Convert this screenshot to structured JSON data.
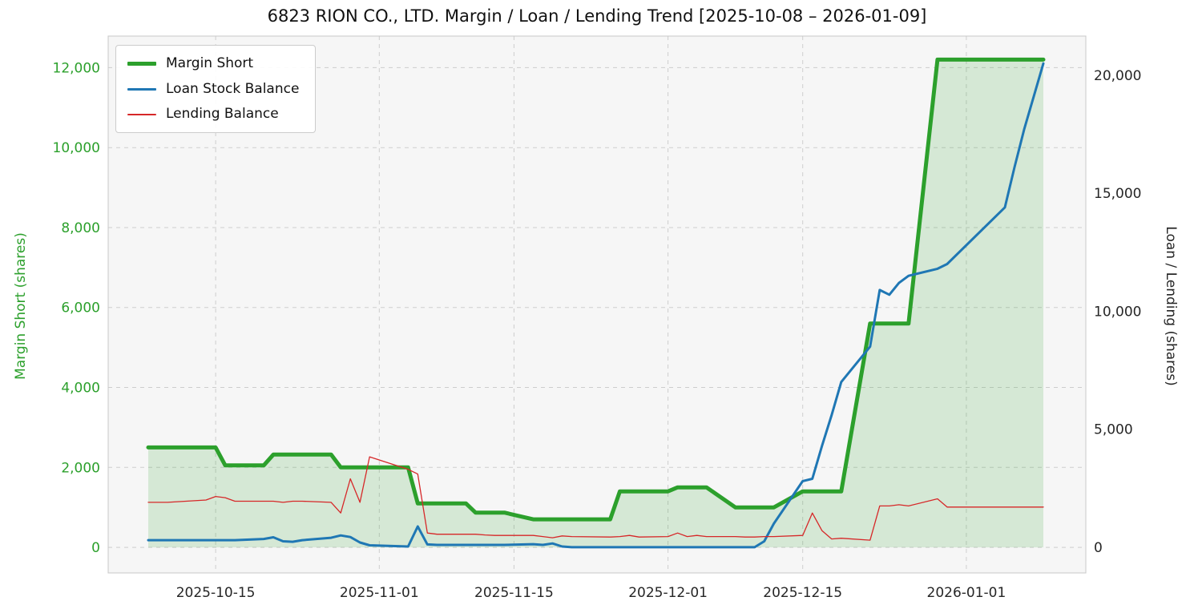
{
  "chart_data": {
    "type": "line",
    "title": "6823 RION CO., LTD. Margin / Loan / Lending Trend [2025-10-08 – 2026-01-09]",
    "grid": "dashed",
    "x": [
      "2025-10-08",
      "2025-10-09",
      "2025-10-10",
      "2025-10-14",
      "2025-10-15",
      "2025-10-16",
      "2025-10-17",
      "2025-10-20",
      "2025-10-21",
      "2025-10-22",
      "2025-10-23",
      "2025-10-24",
      "2025-10-27",
      "2025-10-28",
      "2025-10-29",
      "2025-10-30",
      "2025-10-31",
      "2025-11-04",
      "2025-11-05",
      "2025-11-06",
      "2025-11-07",
      "2025-11-10",
      "2025-11-11",
      "2025-11-12",
      "2025-11-13",
      "2025-11-14",
      "2025-11-17",
      "2025-11-18",
      "2025-11-19",
      "2025-11-20",
      "2025-11-21",
      "2025-11-25",
      "2025-11-26",
      "2025-11-27",
      "2025-11-28",
      "2025-12-01",
      "2025-12-02",
      "2025-12-03",
      "2025-12-04",
      "2025-12-05",
      "2025-12-08",
      "2025-12-09",
      "2025-12-10",
      "2025-12-11",
      "2025-12-12",
      "2025-12-15",
      "2025-12-16",
      "2025-12-17",
      "2025-12-18",
      "2025-12-19",
      "2025-12-22",
      "2025-12-23",
      "2025-12-24",
      "2025-12-25",
      "2025-12-26",
      "2025-12-29",
      "2025-12-30",
      "2026-01-05",
      "2026-01-06",
      "2026-01-07",
      "2026-01-08",
      "2026-01-09"
    ],
    "series": [
      {
        "name": "Margin Short",
        "axis": "left",
        "color": "#2ca02c",
        "line_width": 5,
        "fill_under": true,
        "fill_color": "rgba(44,160,44,0.16)",
        "values": [
          2500,
          2500,
          2500,
          2500,
          2500,
          2050,
          2050,
          2050,
          2320,
          2320,
          2320,
          2320,
          2320,
          2000,
          2000,
          2000,
          2000,
          2000,
          1100,
          1100,
          1100,
          1100,
          870,
          870,
          870,
          870,
          700,
          700,
          700,
          700,
          700,
          700,
          1400,
          1400,
          1400,
          1400,
          1500,
          1500,
          1500,
          1500,
          1000,
          1000,
          1000,
          1000,
          1000,
          1400,
          1400,
          1400,
          1400,
          1400,
          5600,
          5600,
          5600,
          5600,
          5600,
          12200,
          12200,
          12200,
          12200,
          12200,
          12200,
          12200
        ]
      },
      {
        "name": "Loan Stock Balance",
        "axis": "right",
        "color": "#1f77b4",
        "line_width": 3,
        "fill_under": false,
        "values": [
          300,
          300,
          300,
          300,
          300,
          300,
          300,
          350,
          420,
          250,
          230,
          300,
          400,
          500,
          430,
          200,
          80,
          30,
          880,
          120,
          100,
          100,
          100,
          100,
          100,
          100,
          130,
          100,
          160,
          30,
          0,
          0,
          0,
          0,
          0,
          0,
          0,
          0,
          0,
          0,
          0,
          0,
          0,
          250,
          1000,
          2800,
          2900,
          4300,
          5600,
          7000,
          8500,
          10900,
          10700,
          11200,
          11500,
          11800,
          12000,
          14400,
          16100,
          17700,
          19100,
          20500
        ]
      },
      {
        "name": "Lending Balance",
        "axis": "right",
        "color": "#d62728",
        "line_width": 1.3,
        "fill_under": false,
        "values": [
          1900,
          1900,
          1900,
          2000,
          2150,
          2100,
          1950,
          1950,
          1950,
          1900,
          1950,
          1950,
          1900,
          1450,
          2900,
          1900,
          3830,
          3300,
          3100,
          600,
          550,
          550,
          550,
          520,
          500,
          500,
          500,
          450,
          400,
          480,
          450,
          430,
          450,
          500,
          430,
          450,
          600,
          450,
          500,
          450,
          450,
          430,
          430,
          450,
          450,
          500,
          1450,
          700,
          350,
          380,
          300,
          1750,
          1750,
          1800,
          1750,
          2050,
          1700,
          1700,
          1700,
          1700,
          1700,
          1700
        ]
      }
    ],
    "left_axis": {
      "label": "Margin Short (shares)",
      "color": "#2ca02c",
      "ticks": [
        0,
        2000,
        4000,
        6000,
        8000,
        10000,
        12000
      ],
      "range": [
        -640,
        12790
      ]
    },
    "right_axis": {
      "label": "Loan / Lending (shares)",
      "color": "#262626",
      "ticks": [
        0,
        5000,
        10000,
        15000,
        20000
      ],
      "range": [
        -1090,
        21660
      ]
    },
    "x_axis": {
      "start": "2025-10-08",
      "end": "2026-01-09",
      "tick_labels": [
        "2025-10-15",
        "2025-11-01",
        "2025-11-15",
        "2025-12-01",
        "2025-12-15",
        "2026-01-01"
      ]
    },
    "legend": {
      "position": "upper-left",
      "entries": [
        "Margin Short",
        "Loan Stock Balance",
        "Lending Balance"
      ]
    }
  }
}
